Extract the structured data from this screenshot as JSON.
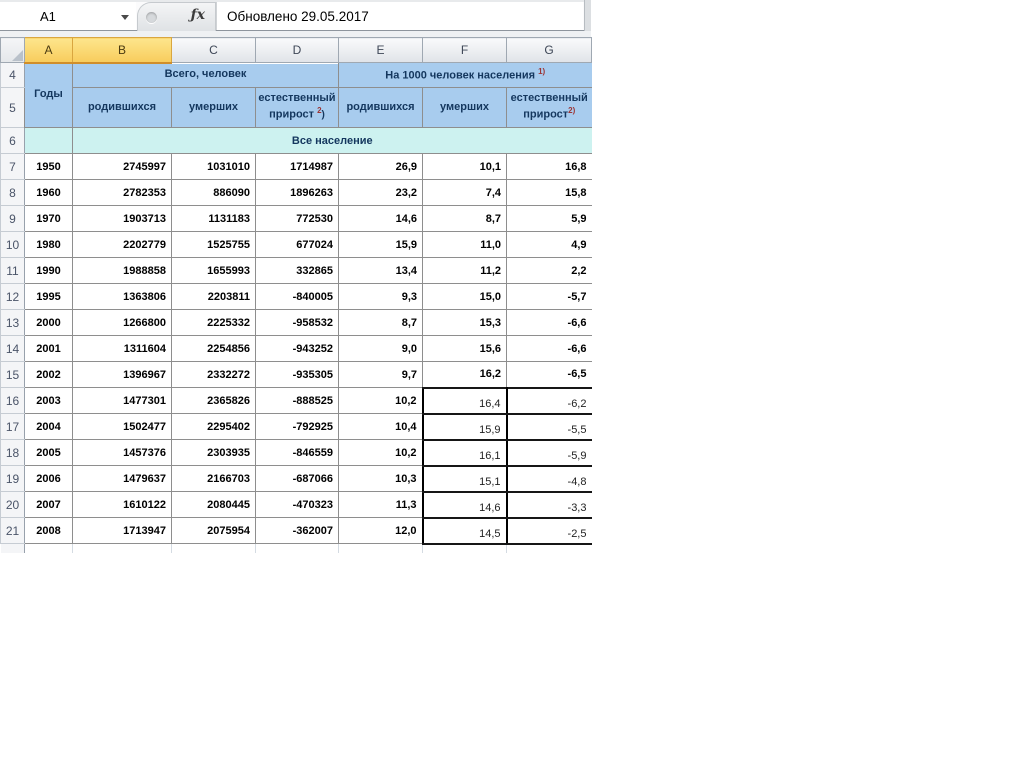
{
  "formula_bar": {
    "name_box_value": "A1",
    "fx_label": "ƒx",
    "formula_value": "Обновлено 29.05.2017"
  },
  "sheet": {
    "columns": [
      {
        "letter": "A",
        "selected": true
      },
      {
        "letter": "B",
        "selected": true
      },
      {
        "letter": "C",
        "selected": false
      },
      {
        "letter": "D",
        "selected": false
      },
      {
        "letter": "E",
        "selected": false
      },
      {
        "letter": "F",
        "selected": false
      },
      {
        "letter": "G",
        "selected": false
      }
    ],
    "header_row_numbers": [
      "4",
      "5",
      "6"
    ],
    "header": {
      "years": "Годы",
      "group_total": "Всего, человек",
      "group_per1000": "На 1000 человек населения",
      "fn1": "1)",
      "fn2": "2",
      "fn2_close": ")",
      "fn2g": "2)",
      "born": "родившихся",
      "died": "умерших",
      "natural_line1": "естественный",
      "natural_line2": "прирост",
      "all_population": "Все население"
    },
    "rows": [
      {
        "n": "7",
        "overlay": false,
        "cells": [
          "1950",
          "2745997",
          "1031010",
          "1714987",
          "26,9",
          "10,1",
          "16,8"
        ]
      },
      {
        "n": "8",
        "overlay": false,
        "cells": [
          "1960",
          "2782353",
          "886090",
          "1896263",
          "23,2",
          "7,4",
          "15,8"
        ]
      },
      {
        "n": "9",
        "overlay": false,
        "cells": [
          "1970",
          "1903713",
          "1131183",
          "772530",
          "14,6",
          "8,7",
          "5,9"
        ]
      },
      {
        "n": "10",
        "overlay": false,
        "cells": [
          "1980",
          "2202779",
          "1525755",
          "677024",
          "15,9",
          "11,0",
          "4,9"
        ]
      },
      {
        "n": "11",
        "overlay": false,
        "cells": [
          "1990",
          "1988858",
          "1655993",
          "332865",
          "13,4",
          "11,2",
          "2,2"
        ]
      },
      {
        "n": "12",
        "overlay": false,
        "cells": [
          "1995",
          "1363806",
          "2203811",
          "-840005",
          "9,3",
          "15,0",
          "-5,7"
        ]
      },
      {
        "n": "13",
        "overlay": false,
        "cells": [
          "2000",
          "1266800",
          "2225332",
          "-958532",
          "8,7",
          "15,3",
          "-6,6"
        ]
      },
      {
        "n": "14",
        "overlay": false,
        "cells": [
          "2001",
          "1311604",
          "2254856",
          "-943252",
          "9,0",
          "15,6",
          "-6,6"
        ]
      },
      {
        "n": "15",
        "overlay": false,
        "cells": [
          "2002",
          "1396967",
          "2332272",
          "-935305",
          "9,7",
          "16,2",
          "-6,5"
        ]
      },
      {
        "n": "16",
        "overlay": true,
        "cells": [
          "2003",
          "1477301",
          "2365826",
          "-888525",
          "10,2",
          "16,4",
          "-6,2"
        ]
      },
      {
        "n": "17",
        "overlay": true,
        "cells": [
          "2004",
          "1502477",
          "2295402",
          "-792925",
          "10,4",
          "15,9",
          "-5,5"
        ]
      },
      {
        "n": "18",
        "overlay": true,
        "cells": [
          "2005",
          "1457376",
          "2303935",
          "-846559",
          "10,2",
          "16,1",
          "-5,9"
        ]
      },
      {
        "n": "19",
        "overlay": true,
        "cells": [
          "2006",
          "1479637",
          "2166703",
          "-687066",
          "10,3",
          "15,1",
          "-4,8"
        ]
      },
      {
        "n": "20",
        "overlay": true,
        "cells": [
          "2007",
          "1610122",
          "2080445",
          "-470323",
          "11,3",
          "14,6",
          "-3,3"
        ]
      },
      {
        "n": "21",
        "overlay": true,
        "cells": [
          "2008",
          "1713947",
          "2075954",
          "-362007",
          "12,0",
          "14,5",
          "-2,5"
        ]
      }
    ],
    "cell_names": [
      "cell-year",
      "cell-born-total",
      "cell-died-total",
      "cell-natural-total",
      "cell-born-per1000",
      "cell-died-per1000",
      "cell-natural-per1000"
    ]
  },
  "colors": {
    "header_blue_fill": "#A8CCEE",
    "header_text": "#14375E",
    "band_cyan_fill": "#CDF2F0",
    "selected_column_fill": "#F8CC5C",
    "footnote_red": "#9C3434"
  }
}
